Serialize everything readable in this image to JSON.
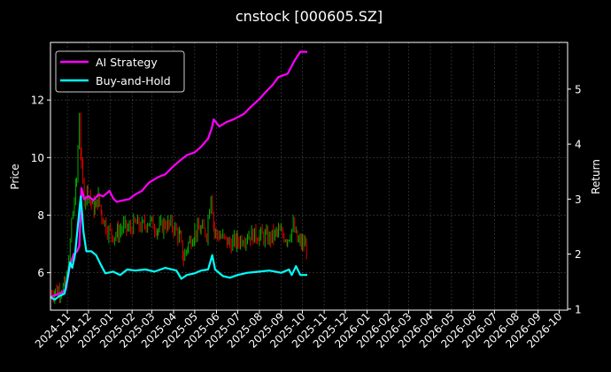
{
  "chart_data": {
    "type": "line",
    "title": "cnstock [000605.SZ]",
    "ylabel_left": "Price",
    "ylabel_right": "Return",
    "x_tick_labels": [
      "2024-11",
      "2024-12",
      "2025-01",
      "2025-02",
      "2025-03",
      "2025-04",
      "2025-05",
      "2025-06",
      "2025-07",
      "2025-08",
      "2025-09",
      "2025-10",
      "2025-11",
      "2025-12",
      "2026-01",
      "2026-02",
      "2026-03",
      "2026-04",
      "2026-05",
      "2026-06",
      "2026-07",
      "2026-08",
      "2026-09",
      "2026-10"
    ],
    "x_range": [
      "2024-10-08",
      "2026-10-13"
    ],
    "y_left": {
      "range": [
        4.7,
        14.0
      ],
      "ticks": [
        6,
        8,
        10,
        12
      ]
    },
    "y_right": {
      "range": [
        0.98,
        5.85
      ],
      "ticks": [
        1,
        2,
        3,
        4,
        5
      ]
    },
    "grid": true,
    "legend_position": "top-left",
    "colors": {
      "background": "#000000",
      "ai": "#ff00ff",
      "bh": "#00ffff",
      "up": "#00b000",
      "down": "#e00000",
      "grid": "#555555"
    },
    "series": [
      {
        "name": "AI Strategy",
        "axis": "right",
        "points": [
          [
            "2024-10-08",
            1.22
          ],
          [
            "2024-10-16",
            1.26
          ],
          [
            "2024-10-24",
            1.3
          ],
          [
            "2024-10-30",
            1.36
          ],
          [
            "2024-11-05",
            1.8
          ],
          [
            "2024-11-10",
            2.0
          ],
          [
            "2024-11-15",
            2.05
          ],
          [
            "2024-11-18",
            2.15
          ],
          [
            "2024-11-21",
            3.2
          ],
          [
            "2024-11-25",
            3.0
          ],
          [
            "2024-12-01",
            3.05
          ],
          [
            "2024-12-08",
            2.98
          ],
          [
            "2024-12-15",
            3.08
          ],
          [
            "2024-12-22",
            3.05
          ],
          [
            "2024-12-31",
            3.15
          ],
          [
            "2025-01-05",
            3.02
          ],
          [
            "2025-01-10",
            2.95
          ],
          [
            "2025-01-20",
            2.98
          ],
          [
            "2025-01-28",
            3.0
          ],
          [
            "2025-02-05",
            3.08
          ],
          [
            "2025-02-15",
            3.15
          ],
          [
            "2025-02-25",
            3.3
          ],
          [
            "2025-03-10",
            3.4
          ],
          [
            "2025-03-20",
            3.45
          ],
          [
            "2025-04-01",
            3.6
          ],
          [
            "2025-04-10",
            3.7
          ],
          [
            "2025-04-20",
            3.8
          ],
          [
            "2025-05-01",
            3.85
          ],
          [
            "2025-05-10",
            3.95
          ],
          [
            "2025-05-20",
            4.1
          ],
          [
            "2025-05-25",
            4.28
          ],
          [
            "2025-05-28",
            4.45
          ],
          [
            "2025-06-05",
            4.32
          ],
          [
            "2025-06-15",
            4.4
          ],
          [
            "2025-06-25",
            4.45
          ],
          [
            "2025-07-10",
            4.55
          ],
          [
            "2025-07-20",
            4.68
          ],
          [
            "2025-08-01",
            4.82
          ],
          [
            "2025-08-10",
            4.95
          ],
          [
            "2025-08-20",
            5.08
          ],
          [
            "2025-08-28",
            5.22
          ],
          [
            "2025-09-10",
            5.28
          ],
          [
            "2025-09-20",
            5.52
          ],
          [
            "2025-09-28",
            5.68
          ],
          [
            "2025-10-08",
            5.68
          ]
        ]
      },
      {
        "name": "Buy-and-Hold",
        "axis": "right",
        "points": [
          [
            "2024-10-08",
            1.22
          ],
          [
            "2024-10-14",
            1.17
          ],
          [
            "2024-10-20",
            1.23
          ],
          [
            "2024-10-28",
            1.28
          ],
          [
            "2024-11-01",
            1.55
          ],
          [
            "2024-11-05",
            1.85
          ],
          [
            "2024-11-08",
            1.75
          ],
          [
            "2024-11-12",
            2.0
          ],
          [
            "2024-11-15",
            2.4
          ],
          [
            "2024-11-20",
            3.05
          ],
          [
            "2024-11-24",
            2.4
          ],
          [
            "2024-11-28",
            2.05
          ],
          [
            "2024-12-05",
            2.05
          ],
          [
            "2024-12-12",
            1.98
          ],
          [
            "2024-12-18",
            1.82
          ],
          [
            "2024-12-25",
            1.65
          ],
          [
            "2025-01-05",
            1.68
          ],
          [
            "2025-01-15",
            1.62
          ],
          [
            "2025-01-25",
            1.72
          ],
          [
            "2025-02-05",
            1.7
          ],
          [
            "2025-02-20",
            1.72
          ],
          [
            "2025-03-05",
            1.68
          ],
          [
            "2025-03-20",
            1.75
          ],
          [
            "2025-04-05",
            1.7
          ],
          [
            "2025-04-12",
            1.55
          ],
          [
            "2025-04-20",
            1.62
          ],
          [
            "2025-05-01",
            1.65
          ],
          [
            "2025-05-10",
            1.7
          ],
          [
            "2025-05-20",
            1.72
          ],
          [
            "2025-05-26",
            1.98
          ],
          [
            "2025-05-30",
            1.72
          ],
          [
            "2025-06-10",
            1.6
          ],
          [
            "2025-06-20",
            1.57
          ],
          [
            "2025-07-01",
            1.62
          ],
          [
            "2025-07-15",
            1.66
          ],
          [
            "2025-08-01",
            1.68
          ],
          [
            "2025-08-15",
            1.7
          ],
          [
            "2025-09-01",
            1.66
          ],
          [
            "2025-09-12",
            1.72
          ],
          [
            "2025-09-16",
            1.62
          ],
          [
            "2025-09-22",
            1.78
          ],
          [
            "2025-09-28",
            1.62
          ],
          [
            "2025-10-08",
            1.62
          ]
        ]
      }
    ],
    "candles_close": [
      [
        "2024-10-08",
        5.3
      ],
      [
        "2024-10-15",
        5.35
      ],
      [
        "2024-10-22",
        5.42
      ],
      [
        "2024-10-29",
        5.55
      ],
      [
        "2024-11-03",
        6.3
      ],
      [
        "2024-11-07",
        7.8
      ],
      [
        "2024-11-11",
        8.5
      ],
      [
        "2024-11-14",
        9.2
      ],
      [
        "2024-11-18",
        11.5
      ],
      [
        "2024-11-21",
        9.6
      ],
      [
        "2024-11-25",
        8.6
      ],
      [
        "2024-11-30",
        8.9
      ],
      [
        "2024-12-05",
        8.4
      ],
      [
        "2024-12-10",
        8.2
      ],
      [
        "2024-12-15",
        8.6
      ],
      [
        "2024-12-20",
        8.0
      ],
      [
        "2024-12-28",
        7.5
      ],
      [
        "2025-01-05",
        7.3
      ],
      [
        "2025-01-12",
        7.4
      ],
      [
        "2025-01-20",
        7.6
      ],
      [
        "2025-01-28",
        7.5
      ],
      [
        "2025-02-05",
        7.7
      ],
      [
        "2025-02-15",
        7.6
      ],
      [
        "2025-02-25",
        7.8
      ],
      [
        "2025-03-10",
        7.5
      ],
      [
        "2025-03-20",
        7.7
      ],
      [
        "2025-04-01",
        7.6
      ],
      [
        "2025-04-10",
        7.2
      ],
      [
        "2025-04-15",
        6.5
      ],
      [
        "2025-04-22",
        7.0
      ],
      [
        "2025-05-01",
        7.4
      ],
      [
        "2025-05-10",
        7.5
      ],
      [
        "2025-05-18",
        7.4
      ],
      [
        "2025-05-24",
        8.8
      ],
      [
        "2025-05-29",
        7.4
      ],
      [
        "2025-06-10",
        7.2
      ],
      [
        "2025-06-20",
        7.0
      ],
      [
        "2025-07-01",
        7.1
      ],
      [
        "2025-07-15",
        7.3
      ],
      [
        "2025-08-01",
        7.3
      ],
      [
        "2025-08-15",
        7.2
      ],
      [
        "2025-08-28",
        7.4
      ],
      [
        "2025-09-10",
        7.2
      ],
      [
        "2025-09-18",
        7.6
      ],
      [
        "2025-09-24",
        7.1
      ],
      [
        "2025-10-01",
        7.0
      ],
      [
        "2025-10-08",
        6.9
      ]
    ]
  }
}
